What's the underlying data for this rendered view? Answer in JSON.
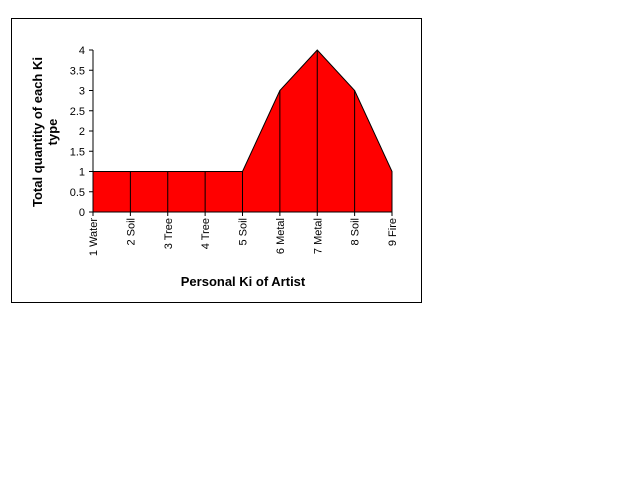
{
  "chart_data": {
    "type": "area",
    "categories": [
      "1 Water",
      "2 Soil",
      "3 Tree",
      "4 Tree",
      "5 Soil",
      "6 Metal",
      "7 Metal",
      "8 Soil",
      "9 Fire"
    ],
    "values": [
      1,
      1,
      1,
      1,
      1,
      3,
      4,
      3,
      1
    ],
    "xlabel": "Personal Ki of Artist",
    "ylabel_lines": [
      "Total quantity of each Ki",
      "type"
    ],
    "ylim": [
      0,
      4
    ],
    "yticks": [
      "0",
      "0.5",
      "1",
      "1.5",
      "2",
      "2.5",
      "3",
      "3.5",
      "4"
    ],
    "grid": false,
    "legend": "none",
    "fill_color": "#ff0000",
    "line_color": "#000000"
  }
}
